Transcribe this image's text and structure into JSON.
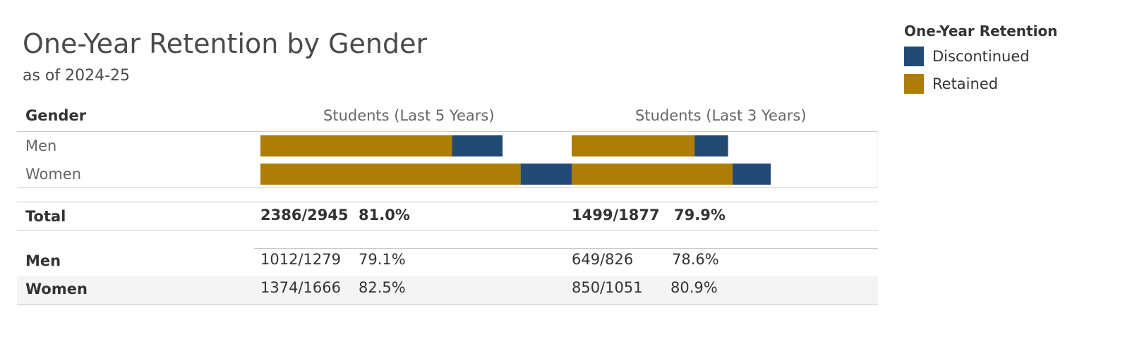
{
  "title": "One-Year Retention by Gender",
  "subtitle": "as of 2024-25",
  "legend": {
    "title": "One-Year Retention",
    "items": [
      {
        "label": "Discontinued",
        "color": "#234a73"
      },
      {
        "label": "Retained",
        "color": "#ad7d07"
      }
    ]
  },
  "table": {
    "gender_header": "Gender",
    "col_headers": [
      "Students (Last 5 Years)",
      "Students (Last 3 Years)"
    ],
    "bar_rows": [
      "Men",
      "Women"
    ],
    "total": {
      "label": "Total",
      "last5": {
        "ratio": "2386/2945",
        "pct": "81.0%"
      },
      "last3": {
        "ratio": "1499/1877",
        "pct": "79.9%"
      }
    },
    "detail": [
      {
        "label": "Men",
        "last5": {
          "ratio": "1012/1279",
          "pct": "79.1%"
        },
        "last3": {
          "ratio": "649/826",
          "pct": "78.6%"
        }
      },
      {
        "label": "Women",
        "last5": {
          "ratio": "1374/1666",
          "pct": "82.5%"
        },
        "last3": {
          "ratio": "850/1051",
          "pct": "80.9%"
        }
      }
    ]
  },
  "chart_data": {
    "type": "bar",
    "orientation": "horizontal",
    "stacked": true,
    "categories": [
      "Men",
      "Women"
    ],
    "panels": [
      {
        "name": "Students (Last 5 Years)",
        "series": [
          {
            "name": "Retained",
            "values": [
              1012,
              1374
            ]
          },
          {
            "name": "Discontinued",
            "values": [
              267,
              292
            ]
          }
        ]
      },
      {
        "name": "Students (Last 3 Years)",
        "series": [
          {
            "name": "Retained",
            "values": [
              649,
              850
            ]
          },
          {
            "name": "Discontinued",
            "values": [
              177,
              201
            ]
          }
        ]
      }
    ],
    "legend": "top-right"
  }
}
